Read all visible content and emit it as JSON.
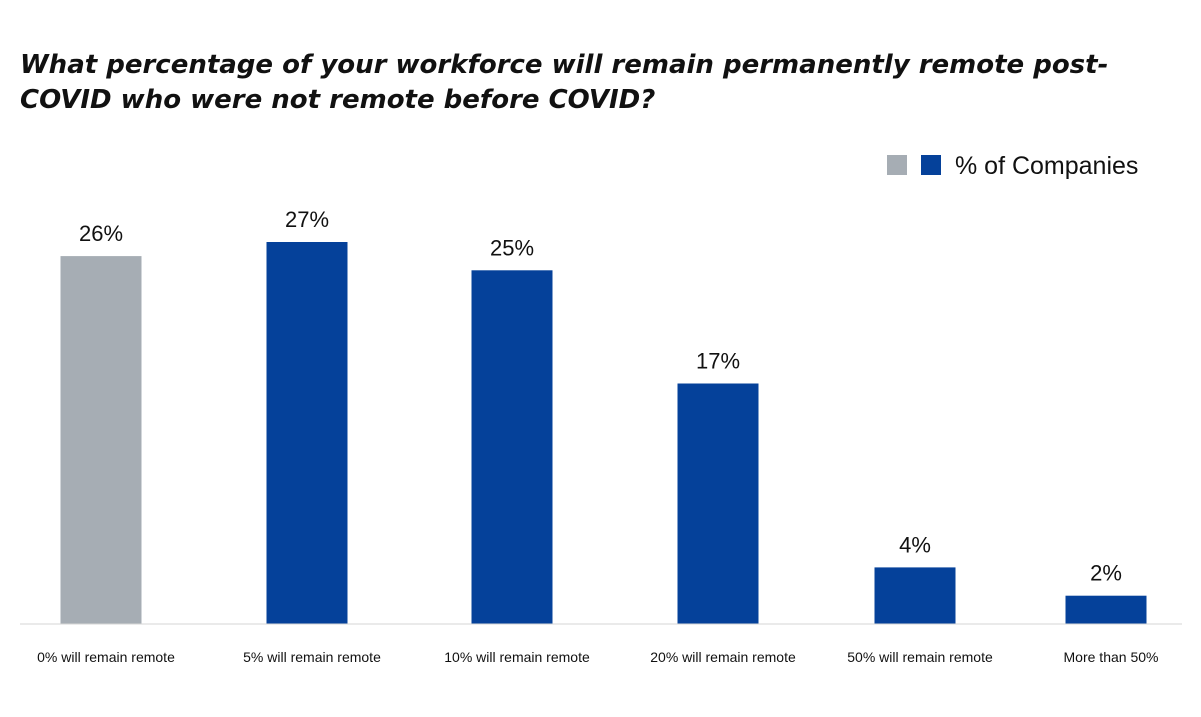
{
  "chart_data": {
    "type": "bar",
    "title": "What percentage of your workforce will remain permanently remote post-COVID who were not remote before COVID?",
    "xlabel": "",
    "ylabel": "",
    "ylim": [
      0,
      27
    ],
    "grid": false,
    "legend_position": "top-right",
    "categories": [
      "0% will remain remote",
      "5% will remain remote",
      "10% will remain remote",
      "20% will remain remote",
      "50% will remain remote",
      "More than 50%"
    ],
    "series": [
      {
        "name": "% of Companies",
        "values": [
          26,
          27,
          25,
          17,
          4,
          2
        ],
        "data_labels": [
          "26%",
          "27%",
          "25%",
          "17%",
          "4%",
          "2%"
        ],
        "color": "#05419a",
        "highlight_index": 0,
        "highlight_color": "#a6adb4"
      }
    ],
    "legend": {
      "swatch_colors": [
        "#a6adb4",
        "#05419a"
      ],
      "label": "% of Companies"
    },
    "axis_color": "#d6d6d6"
  }
}
